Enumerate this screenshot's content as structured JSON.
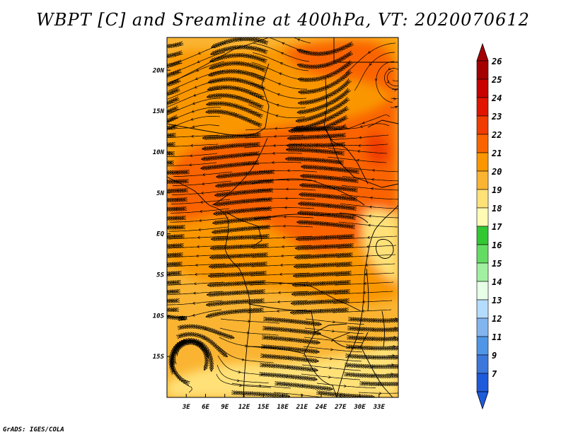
{
  "title": "WBPT [C] and Sreamline at 400hPa, VT: 2020070612",
  "credit": "GrADS: IGES/COLA",
  "map": {
    "lon_min": 0,
    "lon_max": 36,
    "lat_min": -20,
    "lat_max": 24,
    "lon_ticks": [
      {
        "value": 3,
        "label": "3E"
      },
      {
        "value": 6,
        "label": "6E"
      },
      {
        "value": 9,
        "label": "9E"
      },
      {
        "value": 12,
        "label": "12E"
      },
      {
        "value": 15,
        "label": "15E"
      },
      {
        "value": 18,
        "label": "18E"
      },
      {
        "value": 21,
        "label": "21E"
      },
      {
        "value": 24,
        "label": "24E"
      },
      {
        "value": 27,
        "label": "27E"
      },
      {
        "value": 30,
        "label": "30E"
      },
      {
        "value": 33,
        "label": "33E"
      }
    ],
    "lat_ticks": [
      {
        "value": 20,
        "label": "20N"
      },
      {
        "value": 15,
        "label": "15N"
      },
      {
        "value": 10,
        "label": "10N"
      },
      {
        "value": 5,
        "label": "5N"
      },
      {
        "value": 0,
        "label": "EQ"
      },
      {
        "value": -5,
        "label": "5S"
      },
      {
        "value": -10,
        "label": "10S"
      },
      {
        "value": -15,
        "label": "15S"
      }
    ]
  },
  "colorbar": {
    "levels": [
      {
        "label": "26",
        "color": "#a50000"
      },
      {
        "label": "25",
        "color": "#c80000"
      },
      {
        "label": "24",
        "color": "#e11400"
      },
      {
        "label": "23",
        "color": "#f03c00"
      },
      {
        "label": "22",
        "color": "#fa6400"
      },
      {
        "label": "21",
        "color": "#fa9600"
      },
      {
        "label": "20",
        "color": "#fab432"
      },
      {
        "label": "19",
        "color": "#ffe178"
      },
      {
        "label": "18",
        "color": "#fffab4"
      },
      {
        "label": "17",
        "color": "#32c832"
      },
      {
        "label": "16",
        "color": "#64dc64"
      },
      {
        "label": "15",
        "color": "#a0f0a0"
      },
      {
        "label": "14",
        "color": "#e6ffe6"
      },
      {
        "label": "13",
        "color": "#b4dcff"
      },
      {
        "label": "12",
        "color": "#82b4f0"
      },
      {
        "label": "11",
        "color": "#5096e6"
      },
      {
        "label": "9",
        "color": "#3c78dc"
      },
      {
        "label": "7",
        "color": "#1e5adc"
      }
    ],
    "bottom_color": "#1e5adc"
  },
  "colors": {
    "background": "#fab432",
    "warm_zone": "#fa9600",
    "hot_zone": "#fa6400",
    "hot_core": "#f03c00",
    "cool_zone": "#ffe178",
    "streamline": "#000000"
  }
}
